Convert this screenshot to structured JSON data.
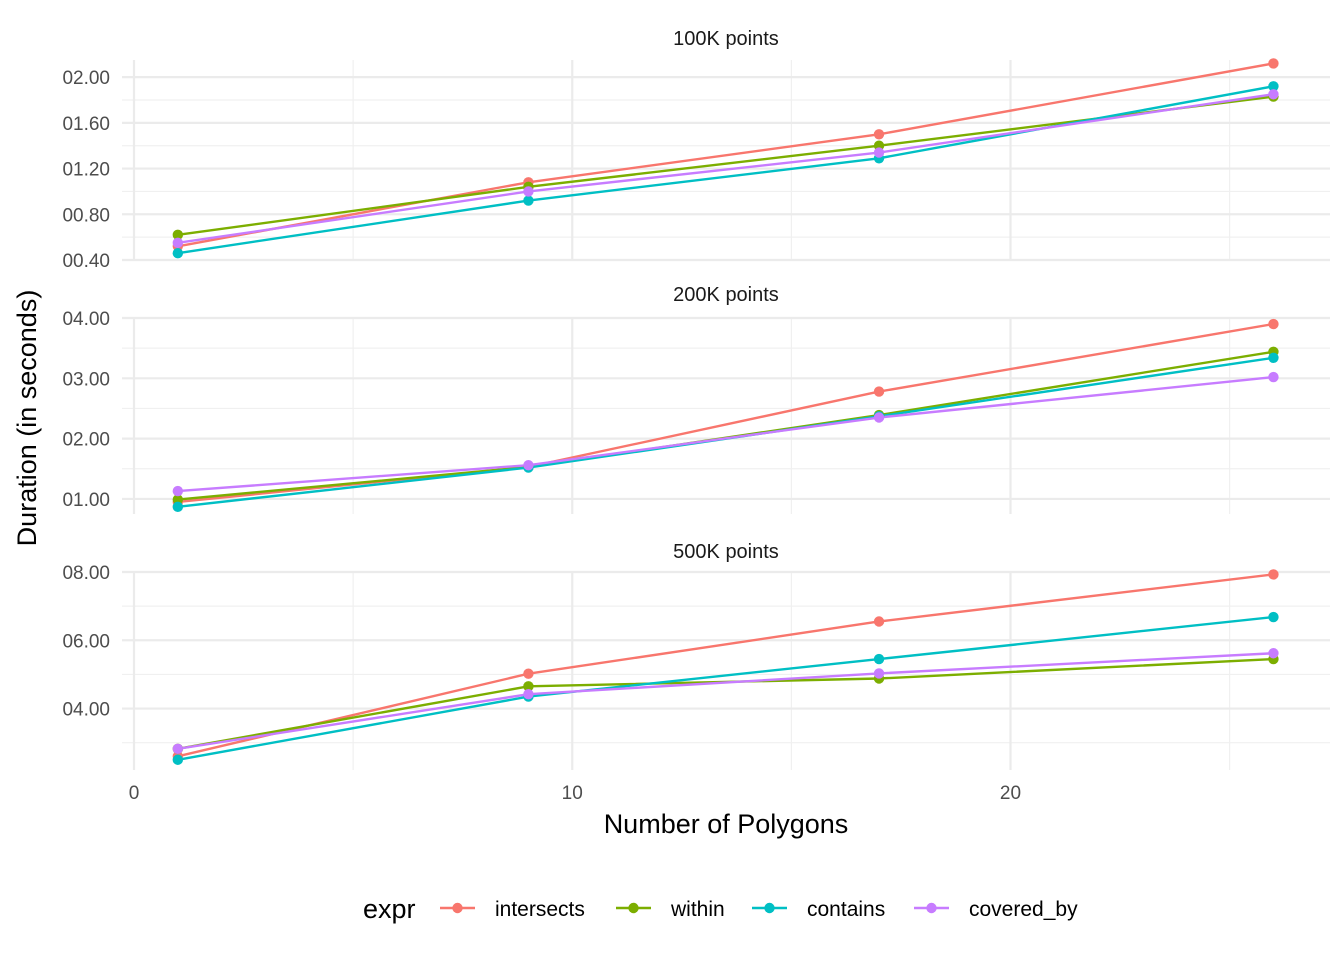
{
  "chart_data": {
    "type": "line",
    "xlabel": "Number of Polygons",
    "ylabel": "Duration (in seconds)",
    "xlim": [
      0,
      27
    ],
    "xticks": [
      0,
      10,
      20
    ],
    "x": [
      1,
      9,
      17,
      26
    ],
    "grid": true,
    "legend": {
      "title": "expr",
      "position": "bottom",
      "entries": [
        "intersects",
        "within",
        "contains",
        "covered_by"
      ]
    },
    "colors": {
      "intersects": "#F8766D",
      "within": "#7CAE00",
      "contains": "#00BFC4",
      "covered_by": "#C77CFF"
    },
    "panels": [
      {
        "title": "100K points",
        "ylim": [
          0.4,
          2.15
        ],
        "yticks": [
          0.4,
          0.8,
          1.2,
          1.6,
          2.0
        ],
        "ytick_labels": [
          "00.40",
          "00.80",
          "01.20",
          "01.60",
          "02.00"
        ],
        "series": [
          {
            "name": "intersects",
            "values": [
              0.52,
              1.08,
              1.5,
              2.12
            ]
          },
          {
            "name": "within",
            "values": [
              0.62,
              1.04,
              1.4,
              1.83
            ]
          },
          {
            "name": "contains",
            "values": [
              0.46,
              0.92,
              1.29,
              1.92
            ]
          },
          {
            "name": "covered_by",
            "values": [
              0.55,
              1.0,
              1.34,
              1.85
            ]
          }
        ]
      },
      {
        "title": "200K points",
        "ylim": [
          0.75,
          4.0
        ],
        "yticks": [
          1.0,
          2.0,
          3.0,
          4.0
        ],
        "ytick_labels": [
          "01.00",
          "02.00",
          "03.00",
          "04.00"
        ],
        "series": [
          {
            "name": "intersects",
            "values": [
              0.95,
              1.53,
              2.78,
              3.9
            ]
          },
          {
            "name": "within",
            "values": [
              0.99,
              1.53,
              2.39,
              3.44
            ]
          },
          {
            "name": "contains",
            "values": [
              0.87,
              1.52,
              2.37,
              3.34
            ]
          },
          {
            "name": "covered_by",
            "values": [
              1.13,
              1.56,
              2.35,
              3.02
            ]
          }
        ]
      },
      {
        "title": "500K points",
        "ylim": [
          2.2,
          8.0
        ],
        "yticks": [
          4.0,
          6.0,
          8.0
        ],
        "ytick_labels": [
          "04.00",
          "06.00",
          "08.00"
        ],
        "series": [
          {
            "name": "intersects",
            "values": [
              2.6,
              5.02,
              6.55,
              7.93
            ]
          },
          {
            "name": "within",
            "values": [
              2.82,
              4.65,
              4.88,
              5.45
            ]
          },
          {
            "name": "contains",
            "values": [
              2.5,
              4.35,
              5.45,
              6.68
            ]
          },
          {
            "name": "covered_by",
            "values": [
              2.82,
              4.42,
              5.03,
              5.62
            ]
          }
        ]
      }
    ]
  }
}
